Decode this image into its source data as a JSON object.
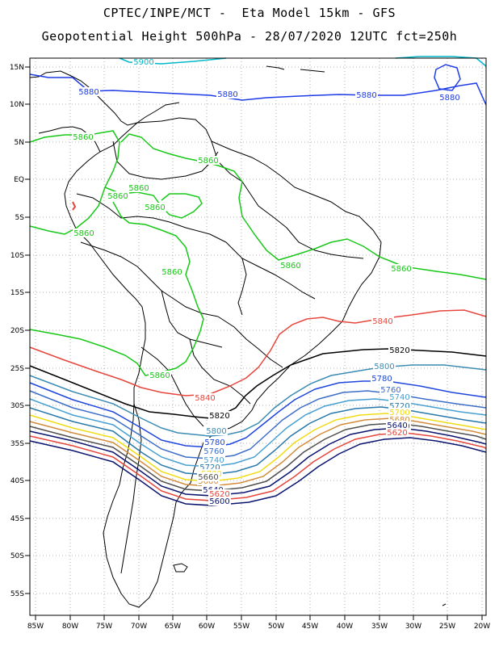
{
  "title": {
    "line1": "CPTEC/INPE/MCT -  Eta Model 15km - GFS",
    "line2": "Geopotential Height 500hPa - 28/07/2020 12UTC fct=250h"
  },
  "axes": {
    "lat_labels": [
      "15N",
      "10N",
      "5N",
      "EQ",
      "5S",
      "10S",
      "15S",
      "20S",
      "25S",
      "30S",
      "35S",
      "40S",
      "45S",
      "50S",
      "55S"
    ],
    "lon_labels": [
      "85W",
      "80W",
      "75W",
      "70W",
      "65W",
      "60W",
      "55W",
      "50W",
      "45W",
      "40W",
      "35W",
      "30W",
      "25W",
      "20W"
    ]
  },
  "contours": [
    {
      "label": "5900",
      "color": "#00b8c8"
    },
    {
      "label": "5880",
      "color": "#1e3ce6"
    },
    {
      "label": "5860",
      "color": "#18c818"
    },
    {
      "label": "5840",
      "color": "#e6463c"
    },
    {
      "label": "5820",
      "color": "#000000"
    },
    {
      "label": "5800",
      "color": "#3c8cb4"
    },
    {
      "label": "5780",
      "color": "#1e46dc"
    },
    {
      "label": "5760",
      "color": "#3c6ec8"
    },
    {
      "label": "5740",
      "color": "#46a0d2"
    },
    {
      "label": "5720",
      "color": "#2878aa"
    },
    {
      "label": "5700",
      "color": "#f0dc14"
    },
    {
      "label": "5680",
      "color": "#d28c3c"
    },
    {
      "label": "5660",
      "color": "#505050"
    },
    {
      "label": "5640",
      "color": "#0a146e"
    },
    {
      "label": "5620",
      "color": "#e6463c"
    },
    {
      "label": "5600",
      "color": "#0a146e"
    }
  ]
}
